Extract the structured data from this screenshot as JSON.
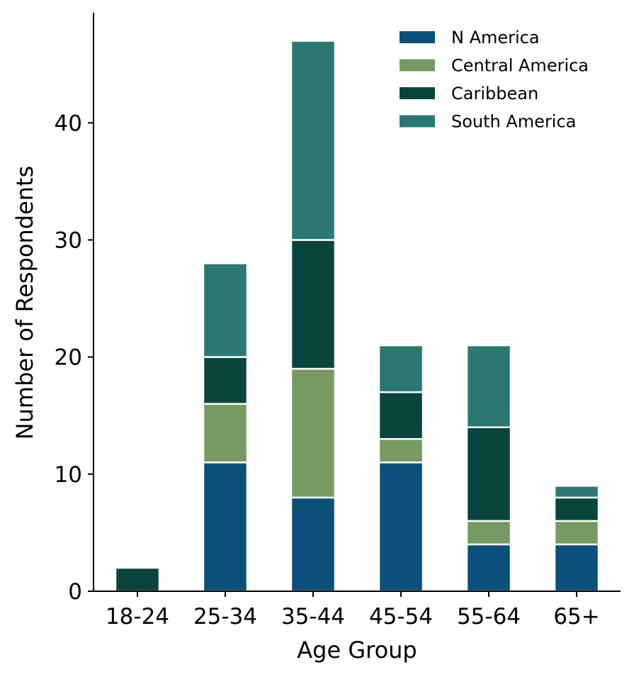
{
  "chart_data": {
    "type": "bar",
    "stacked": true,
    "title": "",
    "xlabel": "Age Group",
    "ylabel": "Number of Respondents",
    "categories": [
      "18-24",
      "25-34",
      "35-44",
      "45-54",
      "55-64",
      "65+"
    ],
    "ylim": [
      0,
      49.4
    ],
    "yticks": [
      0,
      10,
      20,
      30,
      40
    ],
    "grid": false,
    "legend_position": "top-right",
    "series": [
      {
        "name": "N America",
        "color": "#0a507a",
        "values": [
          0,
          11,
          8,
          11,
          4,
          4
        ]
      },
      {
        "name": "Central America",
        "color": "#779a62",
        "values": [
          0,
          5,
          11,
          2,
          2,
          2
        ]
      },
      {
        "name": "Caribbean",
        "color": "#0a453d",
        "values": [
          2,
          4,
          11,
          4,
          8,
          2
        ]
      },
      {
        "name": "South America",
        "color": "#2b7873",
        "values": [
          0,
          8,
          17,
          4,
          7,
          1
        ]
      }
    ]
  }
}
